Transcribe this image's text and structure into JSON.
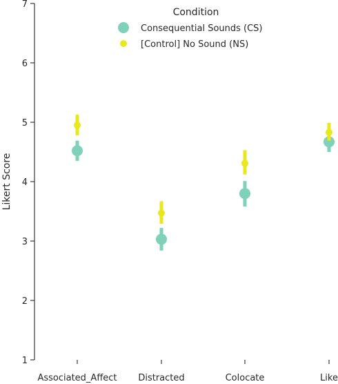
{
  "chart_data": {
    "type": "scatter",
    "title": "",
    "xlabel": "",
    "ylabel": "Likert Score",
    "ylim": [
      1,
      7
    ],
    "yticks": [
      1,
      2,
      3,
      4,
      5,
      6,
      7
    ],
    "categories": [
      "Associated_Affect",
      "Distracted",
      "Colocate",
      "Like"
    ],
    "grid": false,
    "legend": {
      "title": "Condition",
      "placement": "top-right"
    },
    "series": [
      {
        "name": "Consequential Sounds (CS)",
        "color": "#7fd1b9",
        "values": [
          4.52,
          3.03,
          3.8,
          4.67
        ],
        "ci_low": [
          4.35,
          2.84,
          3.58,
          4.5
        ],
        "ci_high": [
          4.69,
          3.22,
          4.01,
          4.83
        ]
      },
      {
        "name": "[Control] No Sound (NS)",
        "color": "#e8e81c",
        "values": [
          4.95,
          3.47,
          4.31,
          4.83
        ],
        "ci_low": [
          4.78,
          3.29,
          4.12,
          4.69
        ],
        "ci_high": [
          5.13,
          3.67,
          4.53,
          4.99
        ]
      }
    ]
  }
}
